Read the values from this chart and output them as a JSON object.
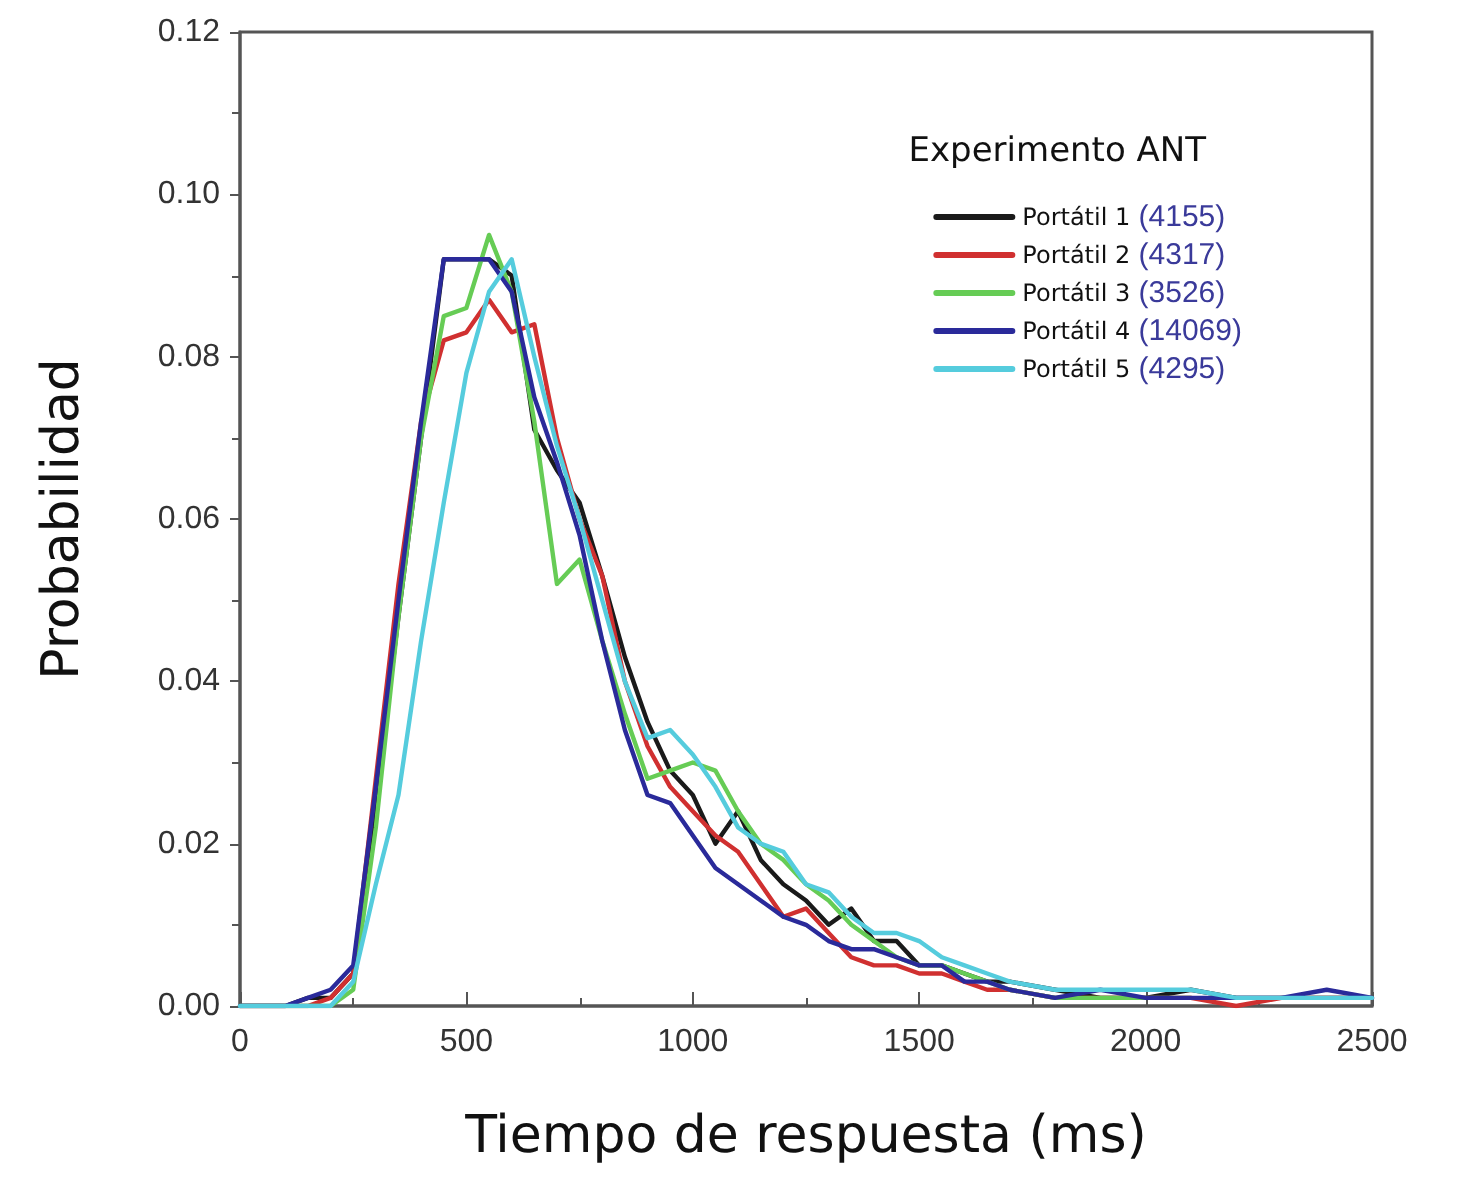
{
  "chart_data": {
    "type": "line",
    "xlabel": "Tiempo de respuesta (ms)",
    "ylabel": "Probabilidad",
    "legend_title": "Experimento ANT",
    "x": [
      0,
      100,
      150,
      200,
      250,
      300,
      350,
      400,
      450,
      500,
      550,
      600,
      650,
      700,
      750,
      800,
      850,
      900,
      950,
      1000,
      1050,
      1100,
      1150,
      1200,
      1250,
      1300,
      1350,
      1400,
      1450,
      1500,
      1550,
      1600,
      1650,
      1700,
      1800,
      1900,
      2000,
      2100,
      2200,
      2300,
      2400,
      2500
    ],
    "series": [
      {
        "name": "Portátil 1 (4155)",
        "color": "#1a1a1a",
        "values": [
          0,
          0,
          0.001,
          0.001,
          0.004,
          0.025,
          0.048,
          0.07,
          0.092,
          0.092,
          0.092,
          0.09,
          0.071,
          0.066,
          0.062,
          0.053,
          0.043,
          0.035,
          0.029,
          0.026,
          0.02,
          0.024,
          0.018,
          0.015,
          0.013,
          0.01,
          0.012,
          0.008,
          0.008,
          0.005,
          0.005,
          0.004,
          0.003,
          0.003,
          0.002,
          0.001,
          0.001,
          0.002,
          0.001,
          0.001,
          0.001,
          0.001
        ]
      },
      {
        "name": "Portátil 2 (4317)",
        "color": "#d03030",
        "values": [
          0,
          0,
          0,
          0.001,
          0.004,
          0.028,
          0.052,
          0.072,
          0.082,
          0.083,
          0.087,
          0.083,
          0.084,
          0.07,
          0.06,
          0.053,
          0.04,
          0.032,
          0.027,
          0.024,
          0.021,
          0.019,
          0.015,
          0.011,
          0.012,
          0.009,
          0.006,
          0.005,
          0.005,
          0.004,
          0.004,
          0.003,
          0.002,
          0.002,
          0.001,
          0.001,
          0.001,
          0.001,
          0,
          0.001,
          0.001,
          0.001
        ]
      },
      {
        "name": "Portátil 3 (3526)",
        "color": "#66cc55",
        "values": [
          0,
          0,
          0,
          0,
          0.002,
          0.022,
          0.048,
          0.07,
          0.085,
          0.086,
          0.095,
          0.088,
          0.072,
          0.052,
          0.055,
          0.045,
          0.036,
          0.028,
          0.029,
          0.03,
          0.029,
          0.024,
          0.02,
          0.018,
          0.015,
          0.013,
          0.01,
          0.008,
          0.006,
          0.005,
          0.005,
          0.004,
          0.003,
          0.002,
          0.001,
          0.001,
          0.001,
          0.001,
          null,
          null,
          null,
          null
        ]
      },
      {
        "name": "Portátil 4 (14069)",
        "color": "#2a2a9a",
        "values": [
          0,
          0,
          0.001,
          0.002,
          0.005,
          0.027,
          0.05,
          0.072,
          0.092,
          0.092,
          0.092,
          0.088,
          0.075,
          0.067,
          0.058,
          0.045,
          0.034,
          0.026,
          0.025,
          0.021,
          0.017,
          0.015,
          0.013,
          0.011,
          0.01,
          0.008,
          0.007,
          0.007,
          0.006,
          0.005,
          0.005,
          0.003,
          0.003,
          0.002,
          0.001,
          0.002,
          0.001,
          0.001,
          0.001,
          0.001,
          0.002,
          0.001
        ]
      },
      {
        "name": "Portátil 5 (4295)",
        "color": "#55ccdd",
        "values": [
          0,
          0,
          0,
          0,
          0.003,
          0.015,
          0.026,
          0.045,
          0.062,
          0.078,
          0.088,
          0.092,
          0.08,
          0.069,
          0.06,
          0.05,
          0.04,
          0.033,
          0.034,
          0.031,
          0.027,
          0.022,
          0.02,
          0.019,
          0.015,
          0.014,
          0.011,
          0.009,
          0.009,
          0.008,
          0.006,
          0.005,
          0.004,
          0.003,
          0.002,
          0.002,
          0.002,
          0.002,
          0.001,
          0.001,
          0.001,
          0.001
        ]
      }
    ],
    "xlim": [
      0,
      2500
    ],
    "xticks": [
      0,
      500,
      1000,
      1500,
      2000,
      2500
    ],
    "ylim": [
      0,
      0.12
    ],
    "yticks": [
      {
        "value": 0,
        "label": "0.00"
      },
      {
        "value": 0.02,
        "label": "0.02"
      },
      {
        "value": 0.04,
        "label": "0.04"
      },
      {
        "value": 0.06,
        "label": "0.06"
      },
      {
        "value": 0.08,
        "label": "0.08"
      },
      {
        "value": 0.1,
        "label": "0.10"
      },
      {
        "value": 0.12,
        "label": "0.12"
      }
    ],
    "legend": "top right",
    "marker": "none",
    "line_style": "solid"
  }
}
